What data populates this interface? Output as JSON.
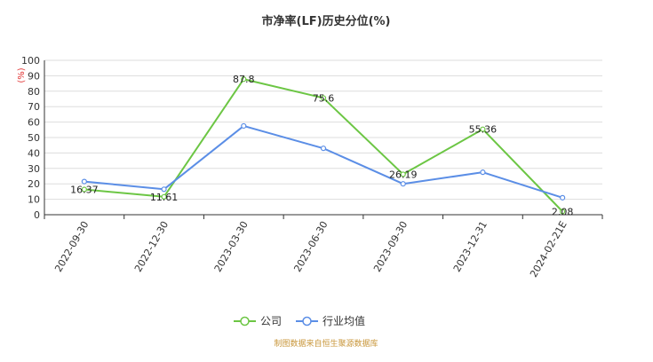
{
  "chart_data": {
    "type": "line",
    "title": "市净率(LF)历史分位(%)",
    "ylabel": "(%)",
    "xlabel": "",
    "categories": [
      "2022-09-30",
      "2022-12-30",
      "2023-03-30",
      "2023-06-30",
      "2023-09-30",
      "2023-12-31",
      "2024-02-21E"
    ],
    "ylim": [
      0,
      100
    ],
    "yticks": [
      0,
      10,
      20,
      30,
      40,
      50,
      60,
      70,
      80,
      90,
      100
    ],
    "grid": true,
    "legend_position": "bottom",
    "series": [
      {
        "name": "公司",
        "color": "#6cc644",
        "values": [
          16.37,
          11.61,
          87.8,
          75.6,
          26.19,
          55.36,
          2.08
        ],
        "labels": [
          "16.37",
          "11.61",
          "87.8",
          "75.6",
          "26.19",
          "55.36",
          "2.08"
        ]
      },
      {
        "name": "行业均值",
        "color": "#5b8ee6",
        "values": [
          21.5,
          16.5,
          57.5,
          43.0,
          20.0,
          27.5,
          11.0
        ]
      }
    ]
  },
  "source_note": "制图数据来自恒生聚源数据库"
}
